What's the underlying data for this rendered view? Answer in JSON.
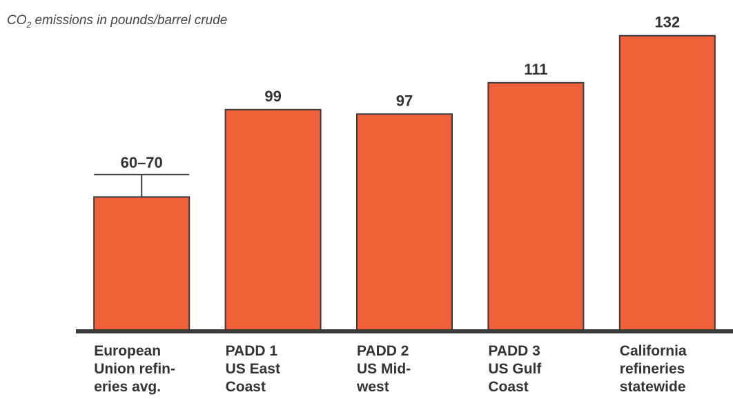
{
  "chart_data": {
    "type": "bar",
    "title": "",
    "ylabel": {
      "prefix": "CO",
      "subscript": "2",
      "suffix": " emissions in pounds/barrel crude"
    },
    "xlabel": "",
    "categories": [
      [
        "European",
        "Union refin-",
        "eries avg."
      ],
      [
        "PADD 1",
        "US East",
        "Coast"
      ],
      [
        "PADD 2",
        "US Mid-",
        "west"
      ],
      [
        "PADD 3",
        "US Gulf",
        "Coast"
      ],
      [
        "California",
        "refineries",
        "statewide"
      ]
    ],
    "values": [
      60,
      99,
      97,
      111,
      132
    ],
    "value_labels": [
      "60–70",
      "99",
      "97",
      "111",
      "132"
    ],
    "error_high": [
      70,
      null,
      null,
      null,
      null
    ],
    "ylim": [
      0,
      135
    ],
    "grid": false,
    "legend": "none",
    "colors": {
      "bar": "#f0613a",
      "bar_stroke": "#3a3a3a",
      "baseline": "#3a3a3a",
      "text": "#333333"
    }
  }
}
